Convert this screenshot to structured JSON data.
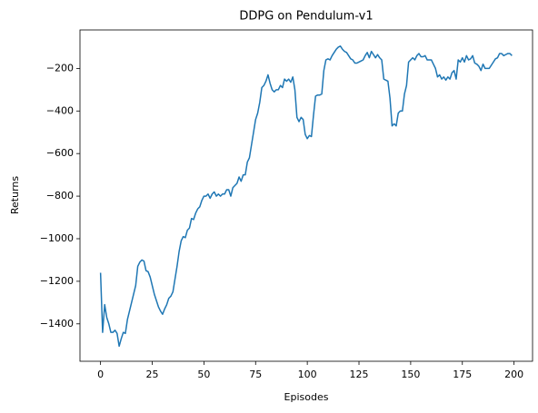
{
  "chart_data": {
    "type": "line",
    "title": "DDPG on Pendulum-v1",
    "xlabel": "Episodes",
    "ylabel": "Returns",
    "color": "#1f77b4",
    "x": [
      0,
      1,
      2,
      3,
      4,
      5,
      6,
      7,
      8,
      9,
      10,
      11,
      12,
      13,
      14,
      15,
      16,
      17,
      18,
      19,
      20,
      21,
      22,
      23,
      24,
      25,
      26,
      27,
      28,
      29,
      30,
      31,
      32,
      33,
      34,
      35,
      36,
      37,
      38,
      39,
      40,
      41,
      42,
      43,
      44,
      45,
      46,
      47,
      48,
      49,
      50,
      51,
      52,
      53,
      54,
      55,
      56,
      57,
      58,
      59,
      60,
      61,
      62,
      63,
      64,
      65,
      66,
      67,
      68,
      69,
      70,
      71,
      72,
      73,
      74,
      75,
      76,
      77,
      78,
      79,
      80,
      81,
      82,
      83,
      84,
      85,
      86,
      87,
      88,
      89,
      90,
      91,
      92,
      93,
      94,
      95,
      96,
      97,
      98,
      99,
      100,
      101,
      102,
      103,
      104,
      105,
      106,
      107,
      108,
      109,
      110,
      111,
      112,
      113,
      114,
      115,
      116,
      117,
      118,
      119,
      120,
      121,
      122,
      123,
      124,
      125,
      126,
      127,
      128,
      129,
      130,
      131,
      132,
      133,
      134,
      135,
      136,
      137,
      138,
      139,
      140,
      141,
      142,
      143,
      144,
      145,
      146,
      147,
      148,
      149,
      150,
      151,
      152,
      153,
      154,
      155,
      156,
      157,
      158,
      159,
      160,
      161,
      162,
      163,
      164,
      165,
      166,
      167,
      168,
      169,
      170,
      171,
      172,
      173,
      174,
      175,
      176,
      177,
      178,
      179,
      180,
      181,
      182,
      183,
      184,
      185,
      186,
      187,
      188,
      189,
      190,
      191,
      192,
      193,
      194,
      195,
      196,
      197,
      198,
      199
    ],
    "values": [
      -1160,
      -1440,
      -1310,
      -1370,
      -1400,
      -1440,
      -1440,
      -1430,
      -1445,
      -1505,
      -1470,
      -1440,
      -1445,
      -1380,
      -1340,
      -1300,
      -1260,
      -1220,
      -1130,
      -1110,
      -1100,
      -1105,
      -1150,
      -1155,
      -1180,
      -1220,
      -1260,
      -1290,
      -1320,
      -1340,
      -1355,
      -1330,
      -1310,
      -1280,
      -1270,
      -1250,
      -1190,
      -1130,
      -1060,
      -1010,
      -990,
      -995,
      -960,
      -950,
      -905,
      -910,
      -880,
      -860,
      -850,
      -820,
      -800,
      -800,
      -790,
      -810,
      -790,
      -780,
      -800,
      -790,
      -800,
      -790,
      -790,
      -770,
      -770,
      -800,
      -760,
      -750,
      -740,
      -710,
      -730,
      -700,
      -700,
      -640,
      -620,
      -560,
      -500,
      -440,
      -410,
      -360,
      -290,
      -280,
      -260,
      -230,
      -270,
      -300,
      -310,
      -300,
      -300,
      -280,
      -290,
      -250,
      -260,
      -250,
      -265,
      -240,
      -300,
      -430,
      -450,
      -430,
      -440,
      -510,
      -530,
      -515,
      -520,
      -420,
      -330,
      -325,
      -325,
      -320,
      -210,
      -160,
      -155,
      -160,
      -140,
      -125,
      -110,
      -100,
      -95,
      -110,
      -120,
      -125,
      -140,
      -155,
      -160,
      -175,
      -175,
      -170,
      -165,
      -160,
      -140,
      -125,
      -150,
      -120,
      -135,
      -150,
      -135,
      -150,
      -160,
      -250,
      -255,
      -260,
      -340,
      -470,
      -460,
      -470,
      -410,
      -400,
      -400,
      -320,
      -280,
      -170,
      -160,
      -150,
      -160,
      -140,
      -130,
      -145,
      -145,
      -140,
      -160,
      -160,
      -160,
      -180,
      -200,
      -240,
      -230,
      -250,
      -240,
      -255,
      -240,
      -250,
      -220,
      -210,
      -250,
      -160,
      -170,
      -150,
      -170,
      -140,
      -160,
      -155,
      -140,
      -175,
      -180,
      -190,
      -210,
      -180,
      -200,
      -200,
      -200,
      -185,
      -170,
      -155,
      -150,
      -130,
      -130,
      -140,
      -135,
      -130,
      -130,
      -140
    ],
    "xlim": [
      -9.95,
      208.95
    ],
    "ylim": [
      -1575.75,
      -19.25
    ],
    "xticks": [
      0,
      25,
      50,
      75,
      100,
      125,
      150,
      175,
      200
    ],
    "yticks": [
      {
        "value": -1400,
        "label": "−1400"
      },
      {
        "value": -1200,
        "label": "−1200"
      },
      {
        "value": -1000,
        "label": "−1000"
      },
      {
        "value": -800,
        "label": "−800"
      },
      {
        "value": -600,
        "label": "−600"
      },
      {
        "value": -400,
        "label": "−400"
      },
      {
        "value": -200,
        "label": "−200"
      }
    ]
  }
}
